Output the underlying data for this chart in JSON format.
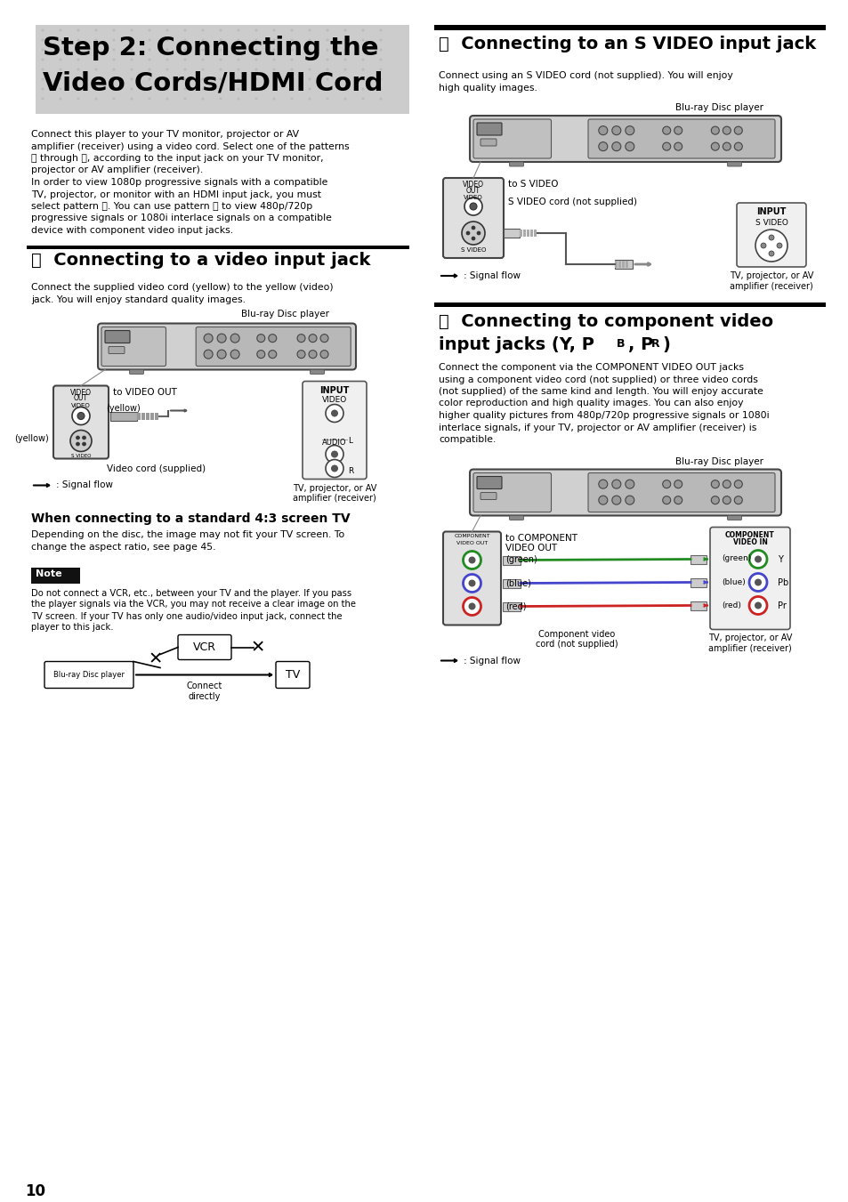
{
  "page_bg": "#ffffff",
  "page_number": "10",
  "main_title_line1": "Step 2: Connecting the",
  "main_title_line2": "Video Cords/HDMI Cord",
  "main_title_bg": "#cccccc",
  "section_a_title": "Connecting to a video input jack",
  "section_b_title": "Connecting to an S VIDEO input jack",
  "section_c_line1": "Connecting to component video",
  "section_c_line2": "input jacks (Y, P",
  "section_c_sub": "B",
  "section_c_line3": ", P",
  "section_c_sub2": "R",
  "section_c_line4": ")",
  "when_connecting_title": "When connecting to a standard 4:3 screen TV",
  "note_label": "Note",
  "signal_flow_text": ": Signal flow",
  "blu_ray_label": "Blu-ray Disc player",
  "to_video_out": "to VIDEO OUT",
  "yellow_label": "(yellow)",
  "video_cord_label": "Video cord (supplied)",
  "to_s_video": "to S VIDEO",
  "s_video_cord": "S VIDEO cord (not supplied)",
  "to_component": "to COMPONENT\nVIDEO OUT",
  "component_cord": "Component video\ncord (not supplied)",
  "green_label": "(green)",
  "blue_label": "(blue)",
  "red_label": "(red)",
  "vcr_label": "VCR",
  "blu_ray_player_label": "Blu-ray Disc player",
  "tv_box_label": "TV",
  "connect_directly": "Connect\ndirectly",
  "tv_label": "TV, projector, or AV\namplifier (receiver)",
  "intro_lines": [
    "Connect this player to your TV monitor, projector or AV",
    "amplifier (receiver) using a video cord. Select one of the patterns",
    "Ⓐ through ⓓ, according to the input jack on your TV monitor,",
    "projector or AV amplifier (receiver).",
    "In order to view 1080p progressive signals with a compatible",
    "TV, projector, or monitor with an HDMI input jack, you must",
    "select pattern ⓓ. You can use pattern Ⓒ to view 480p/720p",
    "progressive signals or 1080i interlace signals on a compatible",
    "device with component video input jacks."
  ],
  "section_a_desc": [
    "Connect the supplied video cord (yellow) to the yellow (video)",
    "jack. You will enjoy standard quality images."
  ],
  "section_b_desc": [
    "Connect using an S VIDEO cord (not supplied). You will enjoy",
    "high quality images."
  ],
  "section_c_desc": [
    "Connect the component via the COMPONENT VIDEO OUT jacks",
    "using a component video cord (not supplied) or three video cords",
    "(not supplied) of the same kind and length. You will enjoy accurate",
    "color reproduction and high quality images. You can also enjoy",
    "higher quality pictures from 480p/720p progressive signals or 1080i",
    "interlace signals, if your TV, projector or AV amplifier (receiver) is",
    "compatible."
  ],
  "when_connecting_desc": [
    "Depending on the disc, the image may not fit your TV screen. To",
    "change the aspect ratio, see page 45."
  ],
  "note_lines": [
    "Do not connect a VCR, etc., between your TV and the player. If you pass",
    "the player signals via the VCR, you may not receive a clear image on the",
    "TV screen. If your TV has only one audio/video input jack, connect the",
    "player to this jack."
  ]
}
